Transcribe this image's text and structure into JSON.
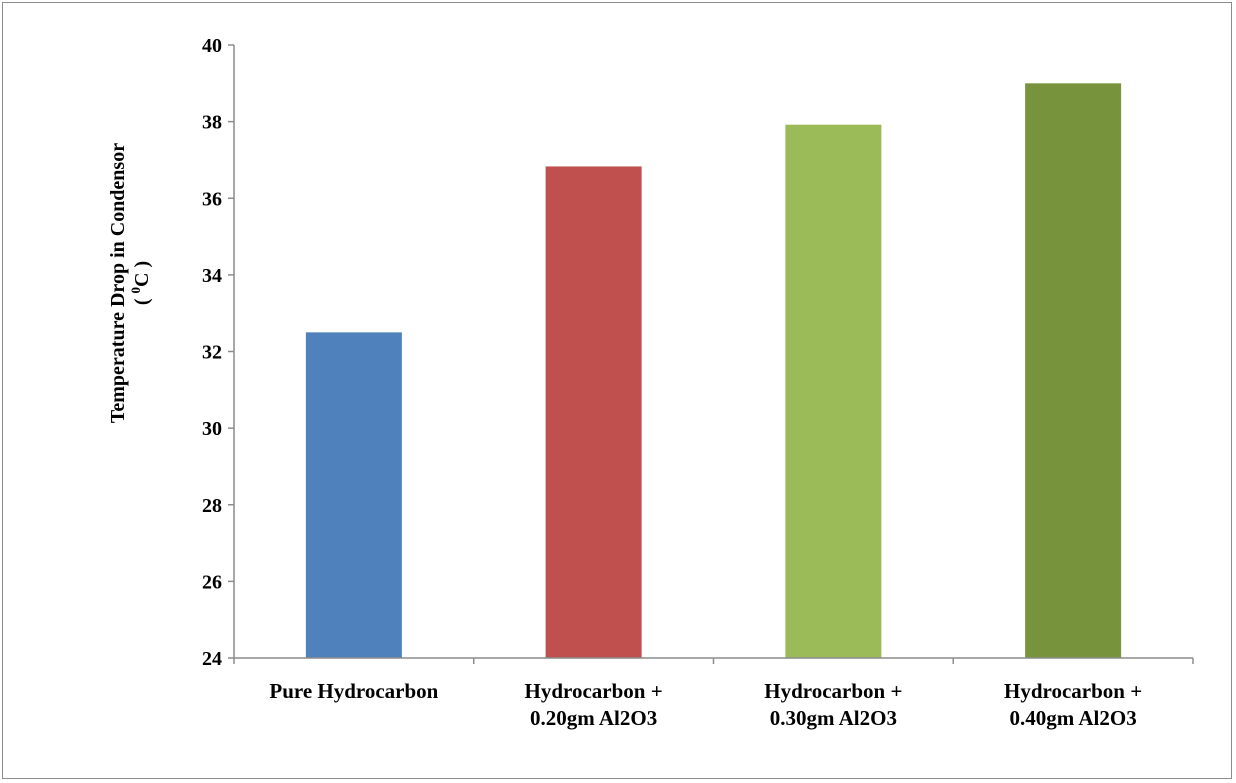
{
  "chart_data": {
    "type": "bar",
    "categories": [
      [
        "Pure Hydrocarbon"
      ],
      [
        "Hydrocarbon +",
        "0.20gm Al2O3"
      ],
      [
        "Hydrocarbon +",
        "0.30gm Al2O3"
      ],
      [
        "Hydrocarbon +",
        "0.40gm Al2O3"
      ]
    ],
    "values": [
      32.5,
      36.83,
      37.92,
      39.0
    ],
    "colors": [
      "#4f81bd",
      "#c0504d",
      "#9bbb59",
      "#77933c"
    ],
    "title": "",
    "xlabel": "",
    "ylabel": "Temperature Drop in Condensor",
    "ylabel_line2_parts": [
      "( ",
      "0",
      "C )"
    ],
    "ylim": [
      24,
      40
    ],
    "yticks": [
      24,
      26,
      28,
      30,
      32,
      34,
      36,
      38,
      40
    ],
    "grid": false,
    "legend": "none"
  }
}
